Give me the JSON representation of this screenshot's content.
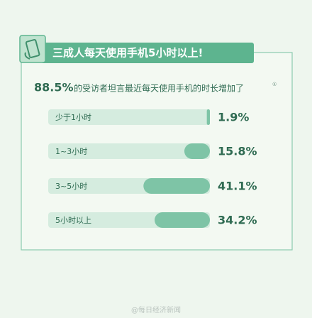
{
  "chart_data": {
    "type": "bar",
    "title": "三成人每天使用手机5小时以上!",
    "highlight": "88.5%",
    "subtitle": "的受访者坦言最近每天使用手机的时长增加了",
    "note_mark": "①",
    "categories": [
      "少于1小时",
      "1~3小时",
      "3~5小时",
      "5小时以上"
    ],
    "values": [
      1.9,
      15.8,
      41.1,
      34.2
    ],
    "value_labels": [
      "1.9%",
      "15.8%",
      "41.1%",
      "34.2%"
    ],
    "color": "#7ec4a6",
    "track_color": "#d5ecdf",
    "xlim": [
      0,
      100
    ],
    "watermark": "@每日经济新闻"
  }
}
